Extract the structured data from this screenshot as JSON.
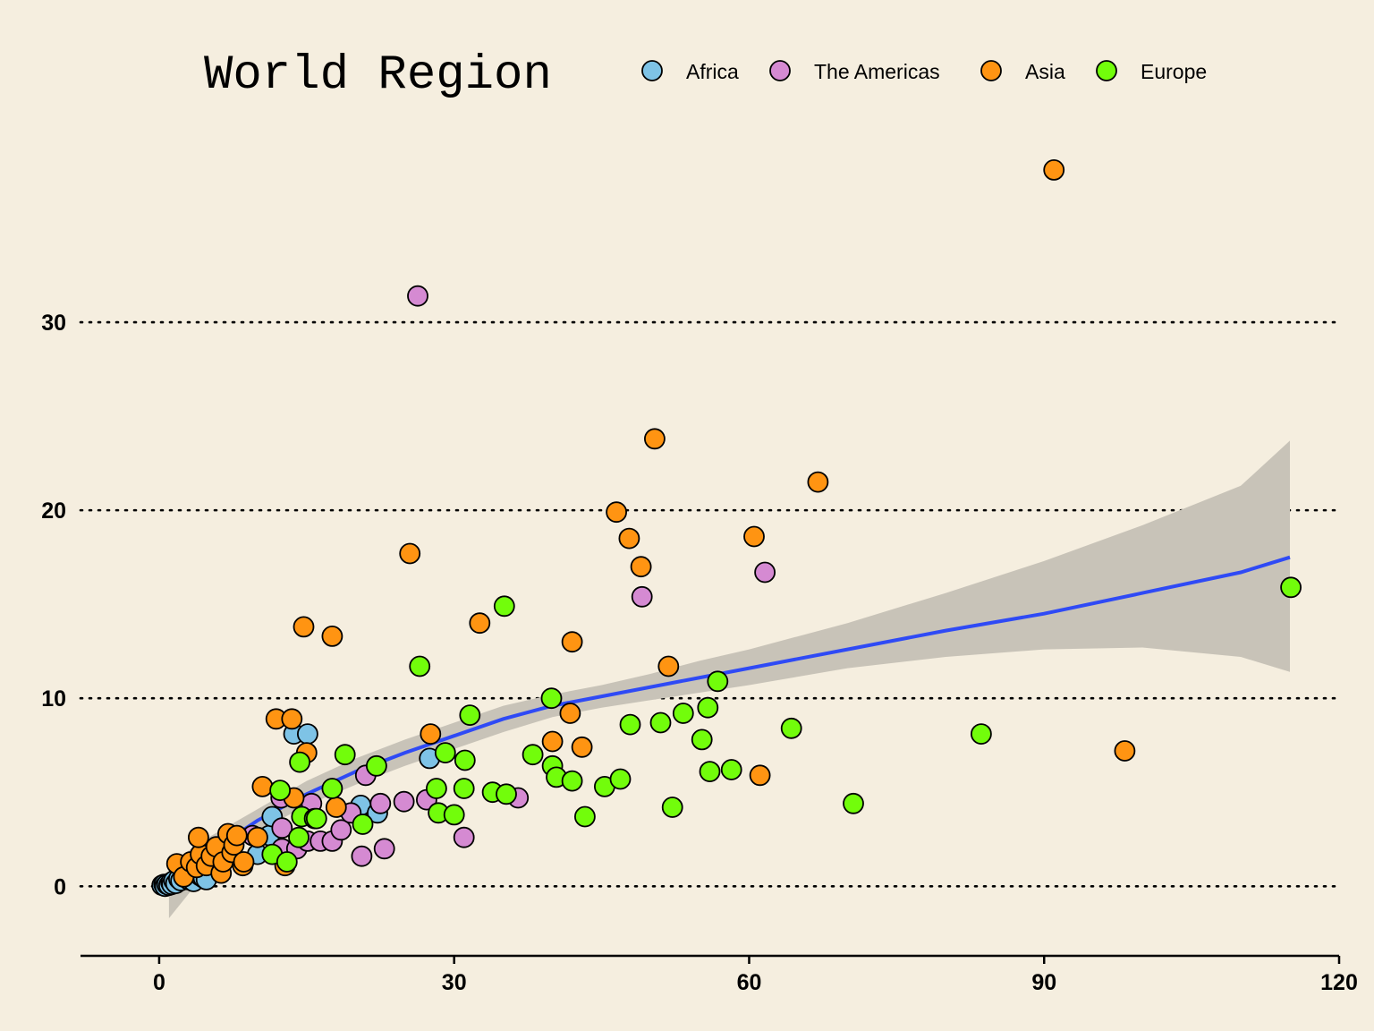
{
  "chart_data": {
    "type": "scatter",
    "title": "",
    "xlabel": "",
    "ylabel": "",
    "xlim": [
      -8,
      120
    ],
    "ylim": [
      -3.7,
      40
    ],
    "x_ticks": [
      0,
      30,
      60,
      90,
      120
    ],
    "y_ticks": [
      0,
      10,
      20,
      30
    ],
    "grid": "horizontal dotted",
    "legend": {
      "title": "World Region",
      "position": "top",
      "entries": [
        {
          "name": "Africa",
          "color": "#7ec3e6"
        },
        {
          "name": "The Americas",
          "color": "#d58ad2"
        },
        {
          "name": "Asia",
          "color": "#ff9412"
        },
        {
          "name": "Europe",
          "color": "#72fd0b"
        }
      ]
    },
    "series": [
      {
        "name": "Africa",
        "color": "#7ec3e6",
        "points": [
          [
            0.3,
            0.05
          ],
          [
            0.5,
            0.1
          ],
          [
            0.6,
            0.0
          ],
          [
            0.8,
            0.1
          ],
          [
            1.0,
            0.05
          ],
          [
            1.2,
            0.2
          ],
          [
            1.3,
            0.1
          ],
          [
            1.5,
            0.3
          ],
          [
            1.7,
            0.15
          ],
          [
            2.0,
            0.4
          ],
          [
            2.2,
            0.3
          ],
          [
            2.5,
            0.5
          ],
          [
            2.8,
            0.6
          ],
          [
            3.0,
            0.35
          ],
          [
            3.3,
            0.7
          ],
          [
            3.5,
            0.25
          ],
          [
            3.9,
            0.9
          ],
          [
            4.2,
            0.55
          ],
          [
            4.5,
            0.45
          ],
          [
            4.8,
            0.35
          ],
          [
            10.0,
            1.7
          ],
          [
            11.2,
            2.7
          ],
          [
            11.5,
            3.7
          ],
          [
            13.7,
            8.1
          ],
          [
            15.1,
            8.1
          ],
          [
            20.5,
            4.3
          ],
          [
            22.2,
            3.9
          ],
          [
            27.5,
            6.8
          ]
        ]
      },
      {
        "name": "The Americas",
        "color": "#d58ad2",
        "points": [
          [
            9.5,
            2.7
          ],
          [
            12.5,
            2.0
          ],
          [
            12.5,
            3.1
          ],
          [
            12.4,
            4.7
          ],
          [
            14.0,
            2.0
          ],
          [
            15.1,
            2.4
          ],
          [
            15.5,
            4.4
          ],
          [
            16.4,
            2.4
          ],
          [
            17.6,
            2.4
          ],
          [
            18.5,
            3.0
          ],
          [
            19.5,
            3.9
          ],
          [
            20.6,
            1.6
          ],
          [
            21.0,
            5.9
          ],
          [
            22.5,
            4.4
          ],
          [
            22.9,
            2.0
          ],
          [
            24.9,
            4.5
          ],
          [
            27.2,
            4.6
          ],
          [
            31.0,
            2.6
          ],
          [
            36.5,
            4.7
          ],
          [
            26.3,
            31.4
          ],
          [
            49.1,
            15.4
          ],
          [
            61.6,
            16.7
          ]
        ]
      },
      {
        "name": "Asia",
        "color": "#ff9412",
        "points": [
          [
            1.8,
            1.2
          ],
          [
            2.5,
            0.5
          ],
          [
            3.2,
            1.3
          ],
          [
            3.8,
            1.0
          ],
          [
            4.2,
            1.7
          ],
          [
            4.8,
            1.1
          ],
          [
            5.3,
            1.6
          ],
          [
            5.8,
            2.1
          ],
          [
            6.3,
            0.7
          ],
          [
            6.5,
            1.3
          ],
          [
            7.0,
            2.8
          ],
          [
            7.4,
            1.8
          ],
          [
            7.6,
            2.2
          ],
          [
            7.9,
            2.7
          ],
          [
            8.5,
            1.1
          ],
          [
            8.6,
            1.3
          ],
          [
            10.0,
            2.6
          ],
          [
            10.5,
            5.3
          ],
          [
            11.9,
            8.9
          ],
          [
            12.8,
            1.1
          ],
          [
            13.5,
            8.9
          ],
          [
            13.7,
            4.7
          ],
          [
            14.7,
            13.8
          ],
          [
            15.0,
            7.1
          ],
          [
            17.6,
            13.3
          ],
          [
            18.0,
            4.2
          ],
          [
            25.5,
            17.7
          ],
          [
            27.6,
            8.1
          ],
          [
            32.6,
            14.0
          ],
          [
            40.0,
            7.7
          ],
          [
            41.8,
            9.2
          ],
          [
            42.0,
            13.0
          ],
          [
            43.0,
            7.4
          ],
          [
            46.5,
            19.9
          ],
          [
            47.8,
            18.5
          ],
          [
            49.0,
            17.0
          ],
          [
            50.4,
            23.8
          ],
          [
            51.8,
            11.7
          ],
          [
            60.5,
            18.6
          ],
          [
            61.1,
            5.9
          ],
          [
            67.0,
            21.5
          ],
          [
            91.0,
            38.1
          ],
          [
            98.2,
            7.2
          ],
          [
            4.0,
            2.6
          ]
        ]
      },
      {
        "name": "Europe",
        "color": "#72fd0b",
        "points": [
          [
            11.5,
            1.7
          ],
          [
            12.3,
            5.1
          ],
          [
            13.0,
            1.3
          ],
          [
            14.2,
            2.6
          ],
          [
            14.3,
            6.6
          ],
          [
            14.5,
            3.7
          ],
          [
            15.8,
            3.6
          ],
          [
            16.0,
            3.6
          ],
          [
            17.6,
            5.2
          ],
          [
            18.9,
            7.0
          ],
          [
            20.7,
            3.3
          ],
          [
            22.1,
            6.4
          ],
          [
            28.2,
            5.2
          ],
          [
            28.4,
            3.9
          ],
          [
            29.1,
            7.1
          ],
          [
            30.0,
            3.8
          ],
          [
            31.0,
            5.2
          ],
          [
            31.1,
            6.7
          ],
          [
            31.6,
            9.1
          ],
          [
            33.9,
            5.0
          ],
          [
            35.1,
            14.9
          ],
          [
            35.3,
            4.9
          ],
          [
            38.0,
            7.0
          ],
          [
            40.0,
            6.4
          ],
          [
            40.4,
            5.8
          ],
          [
            42.0,
            5.6
          ],
          [
            45.3,
            5.3
          ],
          [
            46.9,
            5.7
          ],
          [
            47.9,
            8.6
          ],
          [
            51.0,
            8.7
          ],
          [
            52.2,
            4.2
          ],
          [
            53.3,
            9.2
          ],
          [
            55.2,
            7.8
          ],
          [
            55.8,
            9.5
          ],
          [
            56.0,
            6.1
          ],
          [
            56.8,
            10.9
          ],
          [
            58.2,
            6.2
          ],
          [
            64.3,
            8.4
          ],
          [
            70.6,
            4.4
          ],
          [
            83.6,
            8.1
          ],
          [
            115.1,
            15.9
          ],
          [
            26.5,
            11.7
          ],
          [
            39.9,
            10.0
          ],
          [
            43.3,
            3.7
          ]
        ]
      }
    ],
    "trend": {
      "method": "loess",
      "color": "#2f4af5",
      "band_color": "#c8c3b8",
      "x": [
        1,
        5,
        10,
        15,
        20,
        25,
        30,
        35,
        40,
        45,
        50,
        55,
        60,
        70,
        80,
        90,
        100,
        110,
        115
      ],
      "y": [
        0.15,
        1.75,
        3.5,
        4.9,
        6.1,
        7.1,
        8.0,
        8.9,
        9.6,
        10.1,
        10.6,
        11.1,
        11.6,
        12.6,
        13.6,
        14.5,
        15.6,
        16.7,
        17.5
      ],
      "upper": [
        1.2,
        2.6,
        4.1,
        5.6,
        6.8,
        7.8,
        8.7,
        9.6,
        10.2,
        10.7,
        11.3,
        12.0,
        12.6,
        14.0,
        15.6,
        17.3,
        19.2,
        21.3,
        23.7
      ],
      "lower": [
        -1.7,
        0.9,
        2.9,
        4.3,
        5.4,
        6.4,
        7.3,
        8.2,
        9.0,
        9.5,
        9.9,
        10.3,
        10.7,
        11.6,
        12.2,
        12.6,
        12.7,
        12.2,
        11.4
      ]
    }
  }
}
